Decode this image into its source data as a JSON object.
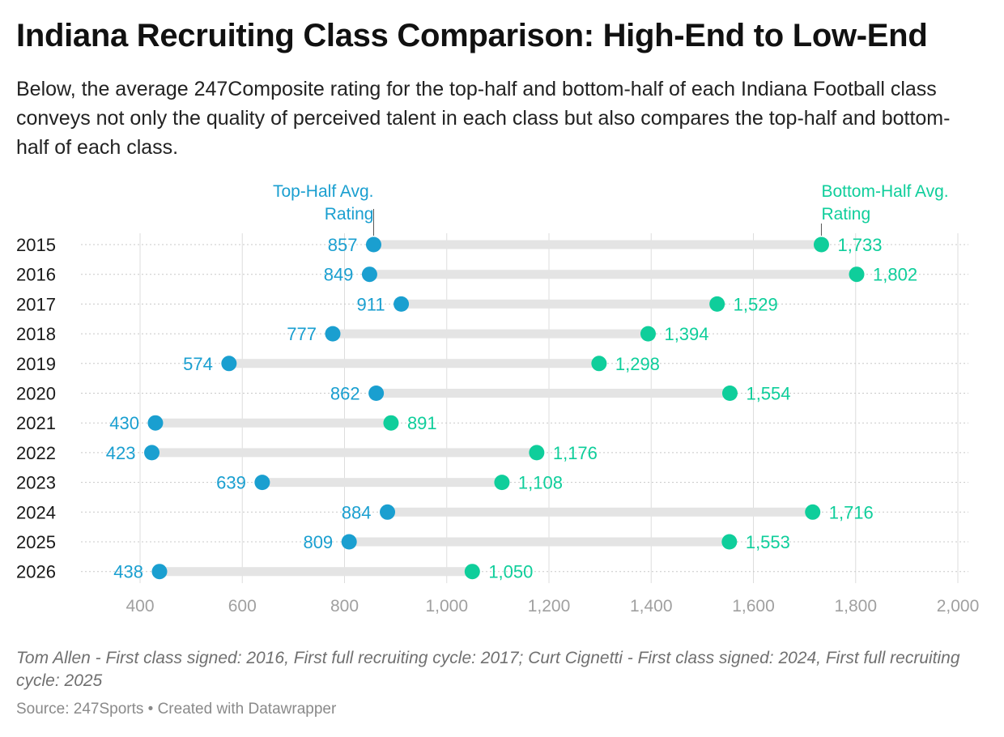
{
  "header": {
    "title": "Indiana Recruiting Class Comparison: High-End to Low-End",
    "subtitle": "Below, the average 247Composite rating for the top-half and bottom-half of each Indiana Football class conveys not only the quality of perceived talent in each class but also compares the top-half and bottom-half of each class."
  },
  "footer": {
    "notes": "Tom Allen - First class signed: 2016, First full recruiting cycle: 2017; Curt Cignetti - First class signed: 2024, First full recruiting cycle: 2025",
    "source": "Source: 247Sports • Created with Datawrapper"
  },
  "chart_data": {
    "type": "dot-range",
    "categories": [
      "2015",
      "2016",
      "2017",
      "2018",
      "2019",
      "2020",
      "2021",
      "2022",
      "2023",
      "2024",
      "2025",
      "2026"
    ],
    "series": [
      {
        "name_lines": [
          "Top-Half Avg.",
          "Rating"
        ],
        "color": "#1a9fd0",
        "values": [
          857,
          849,
          911,
          777,
          574,
          862,
          430,
          423,
          639,
          884,
          809,
          438
        ],
        "labels": [
          "857",
          "849",
          "911",
          "777",
          "574",
          "862",
          "430",
          "423",
          "639",
          "884",
          "809",
          "438"
        ]
      },
      {
        "name_lines": [
          "Bottom-Half Avg.",
          "Rating"
        ],
        "color": "#0fce9b",
        "values": [
          1733,
          1802,
          1529,
          1394,
          1298,
          1554,
          891,
          1176,
          1108,
          1716,
          1553,
          1050
        ],
        "labels": [
          "1,733",
          "1,802",
          "1,529",
          "1,394",
          "1,298",
          "1,554",
          "891",
          "1,176",
          "1,108",
          "1,716",
          "1,553",
          "1,050"
        ]
      }
    ],
    "x_ticks": [
      400,
      600,
      800,
      1000,
      1200,
      1400,
      1600,
      1800,
      2000
    ],
    "x_tick_labels": [
      "400",
      "600",
      "800",
      "1,000",
      "1,200",
      "1,400",
      "1,600",
      "1,800",
      "2,000"
    ],
    "xlim": [
      400,
      2000
    ],
    "grid": true,
    "range_bar_color": "#e4e4e4",
    "grid_color": "#dddddd",
    "tick_label_color": "#a0a0a0"
  }
}
